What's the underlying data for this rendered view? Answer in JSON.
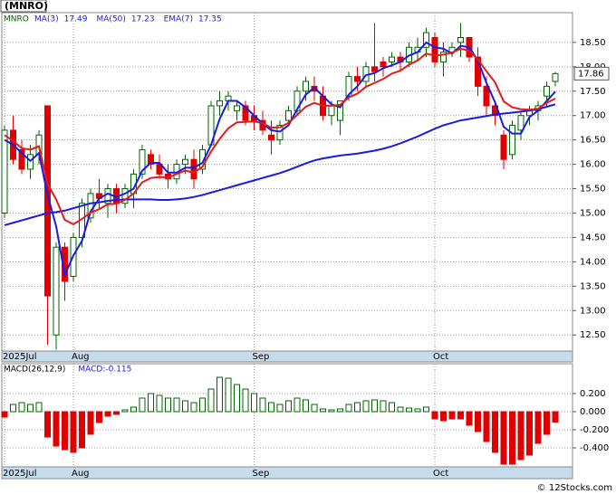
{
  "chart_data": [
    {
      "type": "candlestick",
      "title": "(MNRO)",
      "ticker": "MNRO",
      "categories": [
        "2025Jul",
        null,
        null,
        null,
        null,
        null,
        null,
        null,
        "Aug",
        null,
        null,
        null,
        null,
        null,
        null,
        null,
        null,
        null,
        null,
        null,
        null,
        null,
        null,
        null,
        null,
        null,
        null,
        null,
        null,
        "Sep",
        null,
        null,
        null,
        null,
        null,
        null,
        null,
        null,
        null,
        null,
        null,
        null,
        null,
        null,
        null,
        null,
        null,
        null,
        null,
        null,
        "Oct",
        null,
        null,
        null,
        null,
        null,
        null,
        null,
        null,
        null,
        null,
        null,
        null,
        null,
        null
      ],
      "open": [
        15.0,
        16.7,
        16.3,
        15.9,
        16.2,
        17.2,
        12.5,
        14.3,
        13.7,
        14.5,
        14.9,
        15.4,
        15.2,
        15.5,
        15.2,
        15.4,
        15.8,
        16.2,
        16.0,
        15.8,
        15.7,
        16.0,
        16.1,
        15.9,
        16.4,
        17.2,
        17.3,
        17.1,
        17.2,
        17.0,
        16.9,
        16.6,
        16.5,
        16.9,
        17.1,
        17.5,
        17.6,
        17.4,
        17.0,
        16.9,
        17.4,
        17.8,
        17.7,
        18.0,
        18.1,
        18.1,
        18.2,
        18.1,
        18.3,
        18.4,
        18.6,
        18.1,
        18.3,
        18.5,
        18.6,
        18.2,
        17.6,
        17.2,
        16.6,
        16.2,
        16.7,
        17.0,
        17.1,
        17.4,
        17.7
      ],
      "high": [
        16.8,
        17.0,
        16.5,
        16.4,
        16.7,
        17.2,
        14.4,
        14.4,
        14.6,
        15.3,
        15.5,
        15.7,
        15.6,
        15.6,
        15.6,
        15.9,
        16.4,
        16.3,
        16.2,
        16.0,
        16.1,
        16.2,
        16.3,
        16.4,
        17.3,
        17.5,
        17.5,
        17.3,
        17.3,
        17.2,
        17.1,
        16.9,
        16.9,
        17.2,
        17.6,
        17.8,
        17.8,
        17.6,
        17.3,
        17.3,
        17.9,
        18.0,
        18.1,
        18.9,
        18.2,
        18.3,
        18.3,
        18.5,
        18.6,
        18.8,
        18.7,
        18.5,
        18.5,
        18.9,
        18.6,
        18.4,
        17.8,
        17.3,
        16.7,
        16.9,
        17.1,
        17.2,
        17.3,
        17.7,
        17.9
      ],
      "low": [
        14.9,
        16.0,
        15.8,
        15.7,
        16.0,
        12.3,
        12.2,
        13.2,
        13.6,
        14.3,
        14.8,
        15.1,
        14.9,
        15.0,
        15.1,
        15.1,
        15.7,
        15.9,
        15.7,
        15.5,
        15.6,
        15.8,
        15.5,
        15.8,
        16.4,
        17.0,
        17.1,
        16.9,
        16.8,
        16.7,
        16.6,
        16.2,
        16.4,
        16.8,
        17.0,
        17.3,
        17.3,
        16.9,
        16.8,
        16.6,
        17.3,
        17.5,
        17.6,
        17.7,
        17.8,
        18.0,
        17.9,
        18.0,
        18.1,
        18.2,
        18.0,
        17.8,
        18.2,
        18.2,
        18.1,
        17.4,
        17.0,
        16.8,
        15.9,
        16.1,
        16.5,
        16.8,
        16.9,
        17.2,
        17.6
      ],
      "close": [
        16.7,
        16.1,
        15.9,
        16.2,
        16.6,
        13.3,
        14.3,
        13.6,
        14.5,
        15.2,
        15.4,
        15.3,
        15.5,
        15.2,
        15.5,
        15.8,
        16.3,
        16.0,
        15.8,
        15.7,
        16.0,
        16.1,
        15.7,
        16.3,
        17.2,
        17.3,
        17.4,
        17.2,
        16.9,
        16.9,
        16.7,
        16.5,
        16.8,
        17.1,
        17.5,
        17.7,
        17.5,
        17.0,
        17.2,
        17.3,
        17.8,
        17.7,
        18.0,
        17.9,
        18.0,
        18.2,
        18.1,
        18.4,
        18.4,
        18.7,
        18.1,
        18.3,
        18.4,
        18.6,
        18.2,
        17.6,
        17.2,
        17.0,
        16.1,
        16.8,
        17.0,
        17.1,
        17.2,
        17.6,
        17.86
      ],
      "up_color": "#006400",
      "down_color": "#e00000",
      "series": [
        {
          "name": "MA(3)",
          "color": "#1a1ae6",
          "values": [
            16.5,
            16.4,
            16.23,
            16.07,
            16.23,
            15.37,
            14.73,
            13.73,
            14.13,
            14.43,
            15.03,
            15.3,
            15.4,
            15.33,
            15.4,
            15.5,
            15.87,
            16.03,
            16.03,
            15.83,
            15.83,
            15.93,
            15.93,
            16.03,
            16.4,
            16.93,
            17.3,
            17.3,
            17.17,
            17.0,
            16.83,
            16.7,
            16.67,
            16.8,
            17.13,
            17.43,
            17.57,
            17.4,
            17.23,
            17.17,
            17.43,
            17.6,
            17.83,
            17.87,
            17.97,
            18.03,
            18.1,
            18.23,
            18.3,
            18.5,
            18.4,
            18.37,
            18.27,
            18.43,
            18.4,
            18.13,
            17.67,
            17.27,
            16.77,
            16.63,
            16.63,
            16.97,
            17.1,
            17.3,
            17.49
          ]
        },
        {
          "name": "MA(50)",
          "color": "#1a1ae6",
          "values": [
            14.75,
            14.8,
            14.85,
            14.9,
            14.95,
            15.0,
            15.02,
            15.05,
            15.1,
            15.15,
            15.2,
            15.22,
            15.25,
            15.27,
            15.28,
            15.28,
            15.28,
            15.28,
            15.27,
            15.27,
            15.28,
            15.3,
            15.33,
            15.37,
            15.42,
            15.47,
            15.52,
            15.57,
            15.62,
            15.67,
            15.72,
            15.77,
            15.82,
            15.88,
            15.95,
            16.02,
            16.08,
            16.12,
            16.15,
            16.18,
            16.2,
            16.22,
            16.25,
            16.28,
            16.32,
            16.37,
            16.43,
            16.5,
            16.57,
            16.65,
            16.73,
            16.8,
            16.85,
            16.9,
            16.93,
            16.96,
            16.99,
            17.02,
            17.04,
            17.06,
            17.08,
            17.1,
            17.13,
            17.18,
            17.23
          ]
        },
        {
          "name": "EMA(7)",
          "color": "#e61a1a",
          "values": [
            16.6,
            16.48,
            16.33,
            16.3,
            16.37,
            15.6,
            15.28,
            14.86,
            14.77,
            14.88,
            15.01,
            15.08,
            15.18,
            15.19,
            15.27,
            15.4,
            15.63,
            15.72,
            15.74,
            15.73,
            15.8,
            15.87,
            15.83,
            15.95,
            16.26,
            16.52,
            16.74,
            16.86,
            16.87,
            16.88,
            16.84,
            16.75,
            16.76,
            16.85,
            17.01,
            17.18,
            17.26,
            17.2,
            17.2,
            17.22,
            17.37,
            17.45,
            17.59,
            17.67,
            17.75,
            17.86,
            17.92,
            18.04,
            18.13,
            18.27,
            18.23,
            18.25,
            18.29,
            18.37,
            18.33,
            18.15,
            17.91,
            17.68,
            17.29,
            17.17,
            17.13,
            17.12,
            17.14,
            17.26,
            17.35
          ]
        }
      ],
      "ylim": [
        12.17,
        19.11
      ],
      "yticks": [
        {
          "value": 12.5,
          "label": "12.50"
        },
        {
          "value": 13,
          "label": "13.00"
        },
        {
          "value": 13.5,
          "label": "13.50"
        },
        {
          "value": 14,
          "label": "14.00"
        },
        {
          "value": 14.5,
          "label": "14.50"
        },
        {
          "value": 15,
          "label": "15.00"
        },
        {
          "value": 15.5,
          "label": "15.50"
        },
        {
          "value": 16,
          "label": "16.00"
        },
        {
          "value": 16.5,
          "label": "16.50"
        },
        {
          "value": 17,
          "label": "17.00"
        },
        {
          "value": 17.5,
          "label": "17.50"
        },
        {
          "value": 18,
          "label": "18.00"
        },
        {
          "value": 18.5,
          "label": "18.50"
        }
      ],
      "grid": true
    },
    {
      "type": "bar",
      "title": "MACD(26,12,9)",
      "series": [
        {
          "name": "MACD:",
          "color": "#1a1ae6",
          "values": [
            -0.06,
            0.08,
            0.1,
            0.08,
            0.1,
            -0.28,
            -0.38,
            -0.42,
            -0.45,
            -0.4,
            -0.25,
            -0.12,
            -0.05,
            -0.03,
            0.02,
            0.05,
            0.15,
            0.2,
            0.18,
            0.15,
            0.15,
            0.12,
            0.1,
            0.15,
            0.25,
            0.38,
            0.37,
            0.3,
            0.25,
            0.2,
            0.15,
            0.1,
            0.08,
            0.12,
            0.15,
            0.13,
            0.08,
            0.03,
            0.02,
            0.03,
            0.08,
            0.1,
            0.12,
            0.13,
            0.12,
            0.1,
            0.05,
            0.04,
            0.03,
            0.05,
            -0.08,
            -0.1,
            -0.08,
            -0.08,
            -0.15,
            -0.22,
            -0.33,
            -0.45,
            -0.58,
            -0.58,
            -0.53,
            -0.48,
            -0.35,
            -0.25,
            -0.115
          ]
        }
      ],
      "up_color": "#006400",
      "down_color": "#e00000",
      "ylim": [
        -0.61,
        0.53
      ],
      "yticks": [
        {
          "value": 0.2,
          "label": "0.200"
        },
        {
          "value": 0,
          "label": "0.000"
        },
        {
          "value": -0.2,
          "label": "-0.200"
        },
        {
          "value": -0.4,
          "label": "-0.400"
        }
      ],
      "grid": true
    }
  ],
  "footer": "© 12Stocks.com"
}
